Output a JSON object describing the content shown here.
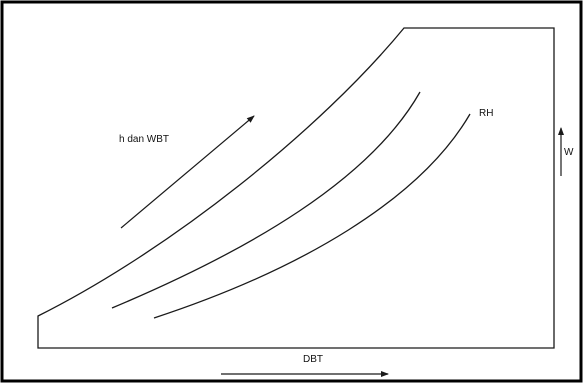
{
  "labels": {
    "enthalpy_wbt": "h dan WBT",
    "rh": "RH",
    "w": "W",
    "dbt": "DBT"
  },
  "colors": {
    "stroke": "#1a1a1a",
    "frame": "#000000",
    "background": "#ffffff"
  }
}
